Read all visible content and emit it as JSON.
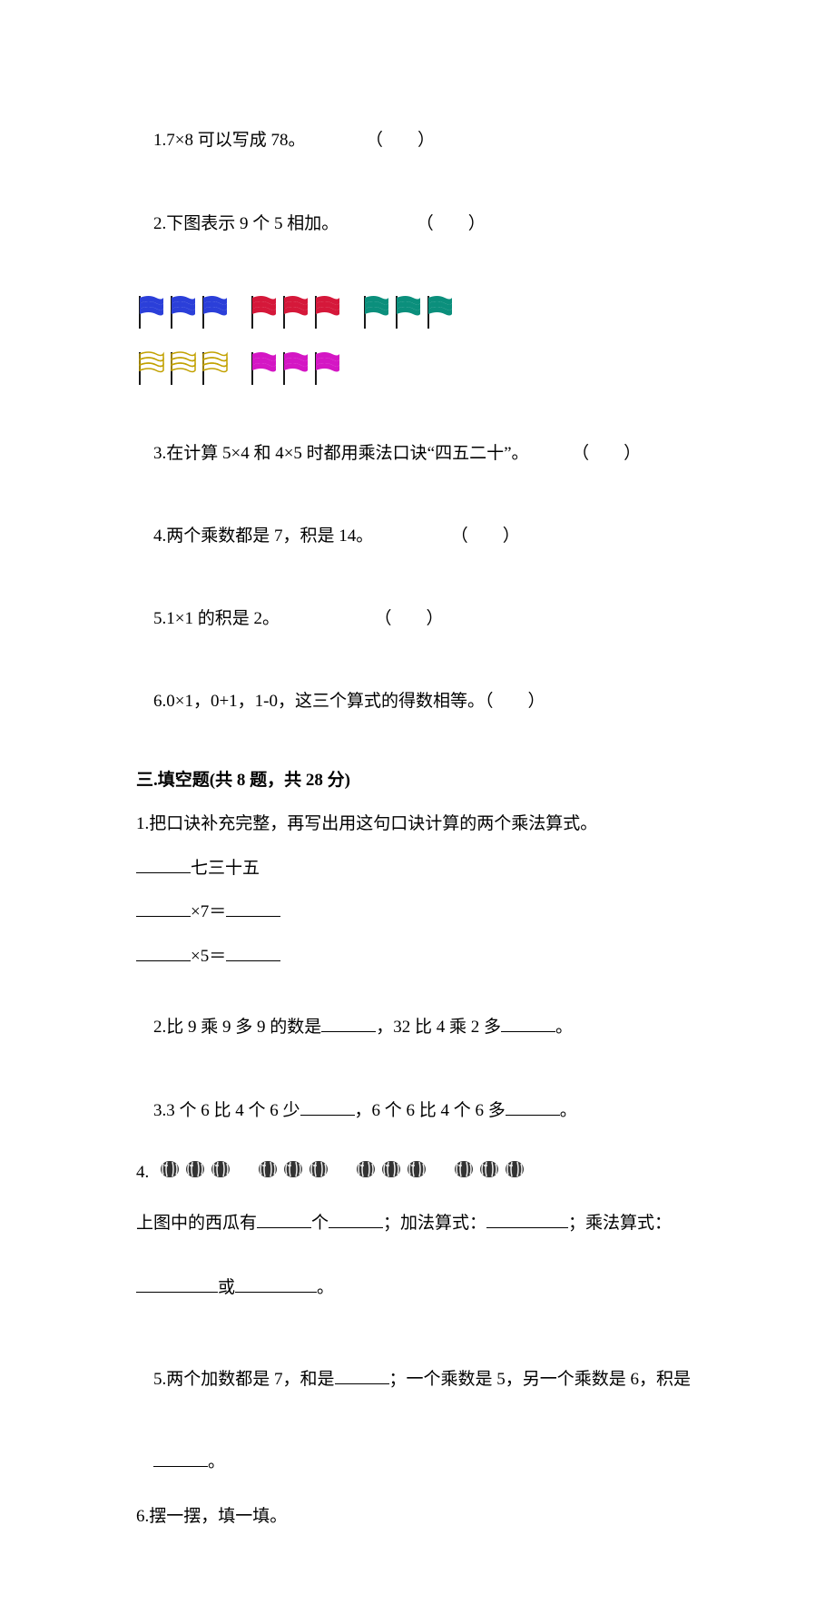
{
  "section2": {
    "q1": "1.7×8 可以写成 78。",
    "q1_paren": "（　　）",
    "q2": "2.下图表示 9 个 5 相加。",
    "q2_paren": "（　　）",
    "flag_colors": {
      "blue": "#2b3fd9",
      "red": "#d5183a",
      "teal": "#0b8f7c",
      "yellow_outline": "#c2a100",
      "magenta": "#d416c4",
      "pole": "#1a1a1a"
    },
    "flag_layout": {
      "row1_groups": [
        3,
        3,
        3
      ],
      "row1_colors": [
        "blue",
        "red",
        "teal"
      ],
      "row2_groups": [
        3,
        3
      ],
      "row2_colors": [
        "yellow_outline",
        "magenta"
      ]
    },
    "q3": "3.在计算 5×4 和 4×5 时都用乘法口诀“四五二十”。",
    "q3_paren": "（　　）",
    "q4": "4.两个乘数都是 7，积是 14。",
    "q4_paren": "（　　）",
    "q5": "5.1×1 的积是 2。",
    "q5_paren": "（　　）",
    "q6": "6.0×1，0+1，1-0，这三个算式的得数相等。（　　）"
  },
  "section3": {
    "title": "三.填空题(共 8 题，共 28 分)",
    "q1_intro": "1.把口诀补充完整，再写出用这句口诀计算的两个乘法算式。",
    "q1_line1_suffix": "七三十五",
    "q1_line2_mid": "×7＝",
    "q1_line3_mid": "×5＝",
    "q2_a": "2.比 9 乘 9 多 9 的数是",
    "q2_b": "，32 比 4 乘 2 多",
    "q2_c": "。",
    "q3_a": "3.3 个 6 比 4 个 6 少",
    "q3_b": "，6 个 6 比 4 个 6 多",
    "q3_c": "。",
    "q4_prefix": "4.",
    "wm_colors": {
      "outer": "#333333",
      "stripe": "#eeeeee"
    },
    "wm_layout": {
      "groups": 4,
      "per_group": 3
    },
    "q4_line2_a": "上图中的西瓜有",
    "q4_line2_b": "个",
    "q4_line2_c": "；加法算式：",
    "q4_line2_d": "；乘法算式：",
    "q4_line3_mid": "或",
    "q4_line3_end": "。",
    "q5_a": "5.两个加数都是 7，和是",
    "q5_b": "；一个乘数是 5，另一个乘数是 6，积是",
    "q5_c": "。",
    "q6": "6.摆一摆，填一填。"
  }
}
